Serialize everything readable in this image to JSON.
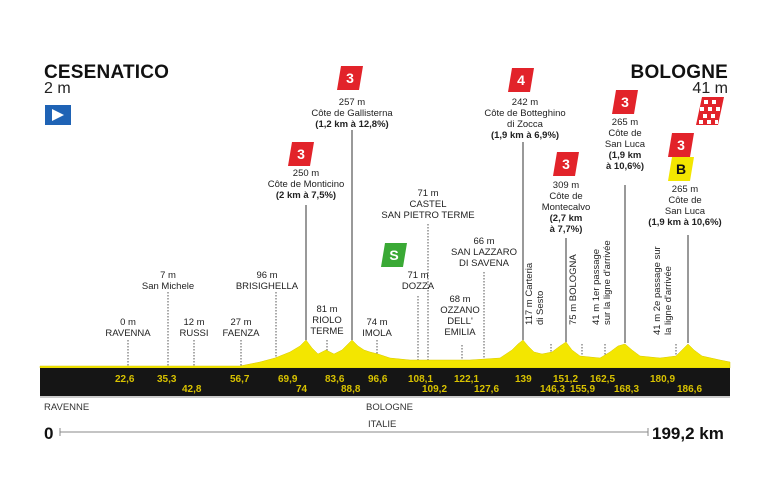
{
  "start": {
    "name": "CESENATICO",
    "altitude": "2 m"
  },
  "finish": {
    "name": "BOLOGNE",
    "altitude": "41 m"
  },
  "regions": {
    "left": "RAVENNE",
    "middle": "BOLOGNE",
    "country": "ITALIE"
  },
  "distance": {
    "start": "0",
    "end": "199,2 km"
  },
  "towns": [
    {
      "alt": "0 m",
      "name": "RAVENNA"
    },
    {
      "alt": "7 m",
      "name": "San Michele"
    },
    {
      "alt": "12 m",
      "name": "RUSSI"
    },
    {
      "alt": "27 m",
      "name": "FAENZA"
    },
    {
      "alt": "96 m",
      "name": "BRISIGHELLA"
    },
    {
      "alt": "81 m",
      "name": "RIOLO",
      "name2": "TERME"
    },
    {
      "alt": "74 m",
      "name": "IMOLA"
    },
    {
      "alt": "71 m",
      "name": "DOZZA"
    },
    {
      "alt": "71 m",
      "name": "CASTEL",
      "name2": "SAN PIETRO TERME"
    },
    {
      "alt": "68 m",
      "name": "OZZANO",
      "name2": "DELL'",
      "name3": "EMILIA"
    },
    {
      "alt": "66 m",
      "name": "SAN LAZZARO",
      "name2": "DI SAVENA"
    }
  ],
  "climbs": [
    {
      "cat": "3",
      "alt": "250 m",
      "name": "Côte de Monticino",
      "detail": "(2 km à 7,5%)"
    },
    {
      "cat": "3",
      "alt": "257 m",
      "name": "Côte de Gallisterna",
      "detail": "(1,2 km à 12,8%)"
    },
    {
      "cat": "4",
      "alt": "242 m",
      "name": "Côte de Botteghino",
      "name2": "di Zocca",
      "detail": "(1,9 km à 6,9%)"
    },
    {
      "cat": "3",
      "alt": "309 m",
      "name": "Côte de",
      "name2": "Montecalvo",
      "detail": "(2,7 km",
      "detail2": "à 7,7%)"
    },
    {
      "cat": "3",
      "alt": "265 m",
      "name": "Côte de",
      "name2": "San Luca",
      "detail": "(1,9 km",
      "detail2": "à 10,6%)"
    },
    {
      "cat": "3",
      "alt": "265 m",
      "name": "Côte de",
      "name2": "San Luca",
      "detail": "(1,9 km à 10,6%)"
    }
  ],
  "sprint": {
    "label": "S"
  },
  "bonus": {
    "label": "B"
  },
  "vertical_labels": [
    {
      "text": "117 m Carteria",
      "text2": "di Sesto"
    },
    {
      "text": "75 m BOLOGNA"
    },
    {
      "text": "41 m 1er passage",
      "text2": "sur la ligne d'arrivée"
    },
    {
      "text": "41 m 2e passage sur",
      "text2": "la ligne d'arrivée"
    }
  ],
  "km_marks": [
    "22,6",
    "35,3",
    "42,8",
    "56,7",
    "69,9",
    "74",
    "83,6",
    "88,8",
    "96,6",
    "108,1",
    "109,2",
    "122,1",
    "127,6",
    "139",
    "146,3",
    "151,2",
    "155,9",
    "162,5",
    "168,3",
    "180,9",
    "186,6"
  ],
  "colors": {
    "profile": "#f3e600",
    "band": "#151515",
    "km_text": "#e2c800",
    "cat": "#e2232a",
    "sprint": "#3aa935",
    "bonus": "#f3e600",
    "start_flag": "#1f63b5"
  }
}
